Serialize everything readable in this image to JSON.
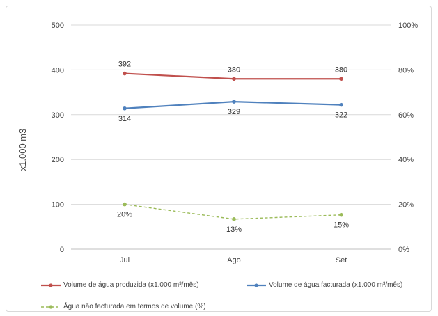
{
  "chart_data": {
    "type": "line",
    "categories": [
      "Jul",
      "Ago",
      "Set"
    ],
    "ylabel": "x1.000 m3",
    "ylim": [
      0,
      500
    ],
    "y_ticks": [
      "0",
      "100",
      "200",
      "300",
      "400",
      "500"
    ],
    "y2lim": [
      0,
      1
    ],
    "y2_ticks": [
      "0%",
      "20%",
      "40%",
      "60%",
      "80%",
      "100%"
    ],
    "grid": true,
    "legend_position": "bottom",
    "series": [
      {
        "name": "Volume de água produzida (x1.000 m³/mês)",
        "values": [
          392,
          380,
          380
        ],
        "labels": [
          "392",
          "380",
          "380"
        ],
        "axis": "left",
        "color": "#c0504d",
        "style": "solid"
      },
      {
        "name": "Volume de água facturada (x1.000 m³/mês)",
        "values": [
          314,
          329,
          322
        ],
        "labels": [
          "314",
          "329",
          "322"
        ],
        "axis": "left",
        "color": "#4f81bd",
        "style": "solid"
      },
      {
        "name": "Água não facturada em termos de volume (%)",
        "values": [
          0.2,
          0.134,
          0.153
        ],
        "labels": [
          "20%",
          "13%",
          "15%"
        ],
        "axis": "right",
        "color": "#9bbb59",
        "style": "dashed"
      }
    ]
  }
}
